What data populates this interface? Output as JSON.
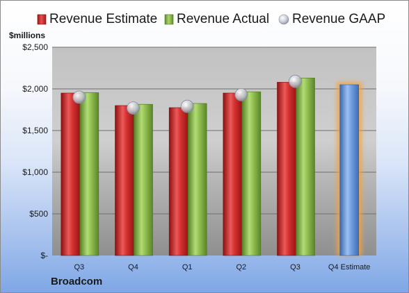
{
  "chart_data": {
    "type": "bar",
    "ylabel": "$millions",
    "company": "Broadcom",
    "categories": [
      "Q3",
      "Q4",
      "Q1",
      "Q2",
      "Q3",
      "Q4 Estimate"
    ],
    "series": [
      {
        "name": "Revenue Estimate",
        "values": [
          1950,
          1800,
          1775,
          1950,
          2080,
          2050
        ],
        "color": "#d42a2a"
      },
      {
        "name": "Revenue Actual",
        "values": [
          1955,
          1815,
          1825,
          1965,
          2130,
          null
        ],
        "color": "#8bb84a"
      },
      {
        "name": "Revenue GAAP",
        "values": [
          1900,
          1770,
          1790,
          1930,
          2090,
          null
        ],
        "color": "#c9cbd6"
      }
    ],
    "estimate_color": "#5f8fd4",
    "highlight_color": "#f5a33c",
    "yticks": [
      0,
      500,
      1000,
      1500,
      2000,
      2500
    ],
    "ytick_labels": [
      "$-",
      "$500",
      "$1,000",
      "$1,500",
      "$2,000",
      "$2,500"
    ],
    "ylim": [
      0,
      2500
    ],
    "grid": true,
    "legend_position": "top"
  }
}
